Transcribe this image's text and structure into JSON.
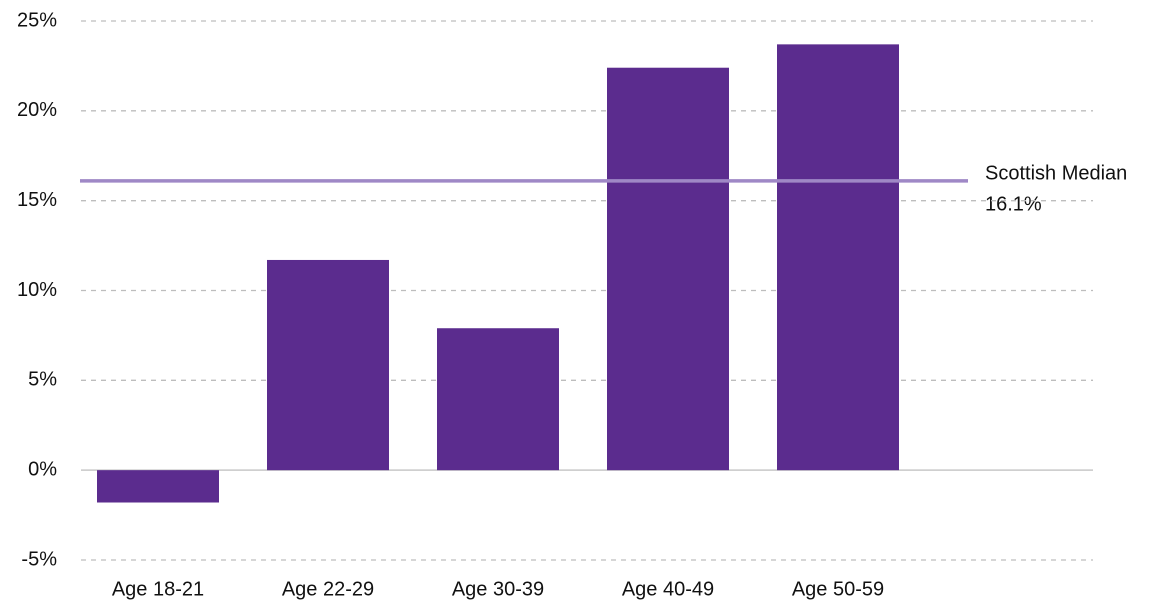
{
  "chart_data": {
    "type": "bar",
    "categories": [
      "Age 18-21",
      "Age 22-29",
      "Age 30-39",
      "Age 40-49",
      "Age 50-59"
    ],
    "values": [
      -1.8,
      11.7,
      7.9,
      22.4,
      23.7
    ],
    "color": "#5b2c8e",
    "ylim": [
      -5,
      25
    ],
    "yticks": [
      {
        "value": -5,
        "label": "-5%"
      },
      {
        "value": 0,
        "label": "0%"
      },
      {
        "value": 5,
        "label": "5%"
      },
      {
        "value": 10,
        "label": "10%"
      },
      {
        "value": 15,
        "label": "15%"
      },
      {
        "value": 20,
        "label": "20%"
      },
      {
        "value": 25,
        "label": "25%"
      }
    ],
    "grid": true,
    "reference_line": {
      "label": "Scottish Median",
      "value": 16.1,
      "value_label": "16.1%",
      "color": "#9f88c6"
    }
  }
}
